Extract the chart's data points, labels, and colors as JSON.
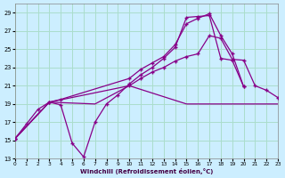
{
  "xlabel": "Windchill (Refroidissement éolien,°C)",
  "background_color": "#cceeff",
  "grid_color": "#aaddcc",
  "line_color": "#880088",
  "xlim": [
    0,
    23
  ],
  "ylim": [
    13,
    30
  ],
  "yticks": [
    13,
    15,
    17,
    19,
    21,
    23,
    25,
    27,
    29
  ],
  "xticks": [
    0,
    1,
    2,
    3,
    4,
    5,
    6,
    7,
    8,
    9,
    10,
    11,
    12,
    13,
    14,
    15,
    16,
    17,
    18,
    19,
    20,
    21,
    22,
    23
  ],
  "curve1_x": [
    0,
    1,
    2,
    3,
    4,
    5,
    6,
    7,
    8,
    9,
    10,
    11,
    12,
    13,
    14,
    15,
    16,
    17,
    18,
    19,
    20
  ],
  "curve1_y": [
    15.2,
    16.8,
    18.4,
    19.2,
    18.9,
    14.7,
    13.2,
    17.0,
    19.0,
    20.0,
    21.2,
    22.2,
    23.0,
    24.0,
    25.2,
    28.5,
    28.6,
    28.7,
    24.0,
    23.8,
    20.9
  ],
  "curve2_x": [
    0,
    3,
    4,
    10,
    11,
    12,
    13,
    14,
    15,
    16,
    17,
    18,
    19,
    20
  ],
  "curve2_y": [
    15.2,
    19.2,
    19.5,
    21.8,
    22.8,
    23.5,
    24.2,
    25.5,
    27.8,
    28.4,
    28.9,
    26.5,
    24.5,
    20.9
  ],
  "curve3_x": [
    0,
    3,
    10,
    11,
    12,
    13,
    14,
    15,
    16,
    17,
    18,
    19,
    20,
    21,
    22,
    23
  ],
  "curve3_y": [
    15.2,
    19.2,
    21.0,
    21.8,
    22.5,
    23.0,
    23.7,
    24.2,
    24.5,
    26.5,
    26.2,
    23.9,
    23.8,
    21.0,
    20.5,
    19.7
  ],
  "curve4_x": [
    0,
    3,
    7,
    10,
    15,
    16,
    17,
    18,
    19,
    20,
    21,
    22,
    23
  ],
  "curve4_y": [
    15.2,
    19.2,
    19.0,
    21.0,
    19.0,
    19.0,
    19.0,
    19.0,
    19.0,
    19.0,
    19.0,
    19.0,
    19.0
  ]
}
